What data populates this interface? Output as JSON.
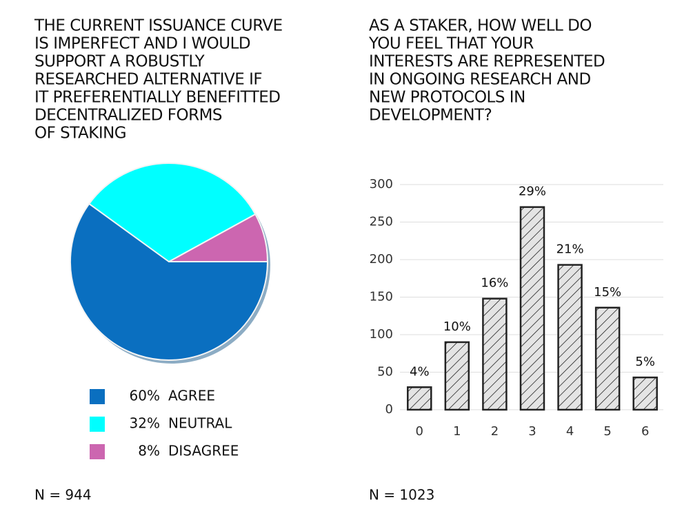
{
  "chart_data": [
    {
      "type": "pie",
      "title": [
        "THE CURRENT ISSUANCE CURVE",
        "IS IMPERFECT AND I WOULD",
        "SUPPORT A ROBUSTLY",
        "RESEARCHED ALTERNATIVE IF",
        "IT PREFERENTIALLY BENEFITTED",
        "DECENTRALIZED FORMS",
        "OF STAKING"
      ],
      "series": [
        {
          "name": "AGREE",
          "color": "#0a6fc0",
          "values": [
            60
          ],
          "value_labels": [
            "60%"
          ]
        },
        {
          "name": "NEUTRAL",
          "color": "#00ffff",
          "values": [
            32
          ],
          "value_labels": [
            "32%"
          ]
        },
        {
          "name": "DISAGREE",
          "color": "#cc66b0",
          "values": [
            8
          ],
          "value_labels": [
            "8%"
          ]
        }
      ],
      "note": "N = 944"
    },
    {
      "type": "bar",
      "title": [
        "AS A STAKER, HOW WELL DO",
        "YOU FEEL THAT YOUR",
        "INTERESTS ARE REPRESENTED",
        "IN ONGOING RESEARCH AND",
        "NEW PROTOCOLS IN",
        "DEVELOPMENT?"
      ],
      "categories": [
        "0",
        "1",
        "2",
        "3",
        "4",
        "5",
        "6"
      ],
      "values": [
        30,
        90,
        148,
        270,
        193,
        136,
        43
      ],
      "percent_labels": [
        "4%",
        "10%",
        "16%",
        "29%",
        "21%",
        "15%",
        "5%"
      ],
      "color": "#e4e4e4",
      "ylim": [
        0,
        300
      ],
      "yticks": [
        0,
        50,
        100,
        150,
        200,
        250,
        300
      ],
      "grid": true,
      "note": "N = 1023"
    }
  ]
}
